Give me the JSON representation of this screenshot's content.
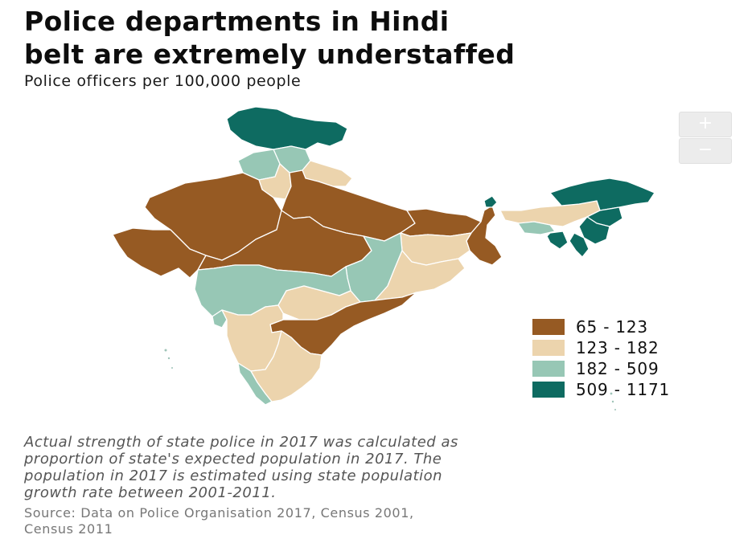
{
  "header": {
    "title_line1": "Police departments in Hindi",
    "title_line2": "belt are extremely understaffed",
    "subtitle": "Police officers per 100,000 people"
  },
  "zoom": {
    "in_label": "+",
    "out_label": "−"
  },
  "colors": {
    "c65_123": "#965a23",
    "c123_182": "#ecd4ad",
    "c182_509": "#97c7b5",
    "c509_1171": "#0e6b61",
    "border": "#ffffff"
  },
  "legend": {
    "items": [
      {
        "label": "65 - 123",
        "color": "#965a23"
      },
      {
        "label": "123 - 182",
        "color": "#ecd4ad"
      },
      {
        "label": "182 - 509",
        "color": "#97c7b5"
      },
      {
        "label": "509 - 1171",
        "color": "#0e6b61"
      }
    ]
  },
  "note": {
    "line1": "Actual strength of state police in 2017 was calculated as",
    "line2": "proportion of state's expected population in 2017. The",
    "line3": "population in 2017 is estimated using state population",
    "line4": "growth rate between 2001-2011."
  },
  "source": {
    "line1": "Source: Data on Police Organisation 2017, Census 2001,",
    "line2": "Census 2011"
  }
}
